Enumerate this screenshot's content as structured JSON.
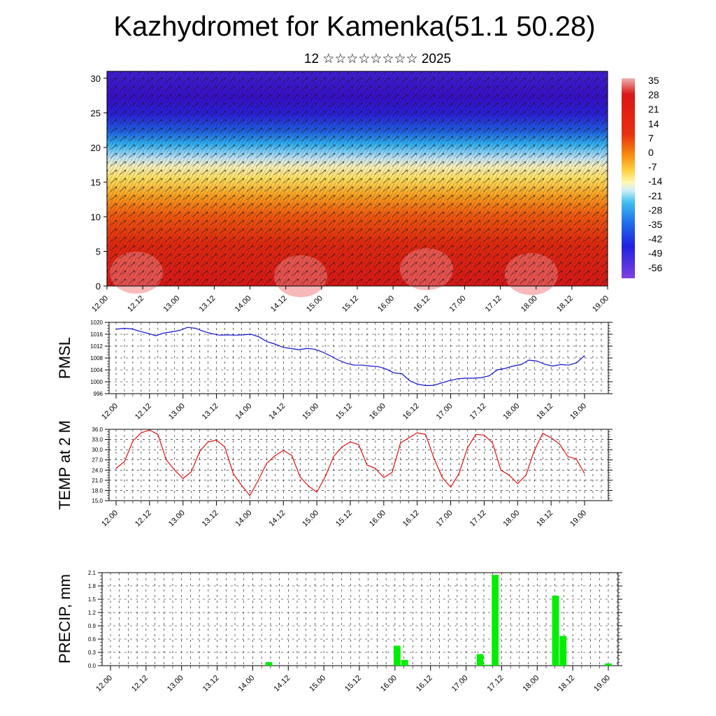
{
  "title": "Kazhydromet for Kamenka(51.1 50.28)",
  "subtitle": "12 ☆☆☆☆☆☆☆☆ 2025",
  "time_labels": [
    "12.00",
    "12.12",
    "13.00",
    "13.12",
    "14.00",
    "14.12",
    "15.00",
    "15.12",
    "16.00",
    "16.12",
    "17.00",
    "17.12",
    "18.00",
    "18.12",
    "19.00"
  ],
  "colorbar_labels": [
    "35",
    "28",
    "21",
    "14",
    "7",
    "0",
    "-7",
    "-14",
    "-21",
    "-28",
    "-35",
    "-42",
    "-49",
    "-56"
  ],
  "colors": {
    "pmsl_line": "#1010d0",
    "temp_line": "#e01010",
    "precip_bar": "#00ee00",
    "section_low": "#d02020",
    "section_high": "#3010c0"
  },
  "chart_data": [
    {
      "type": "heatmap",
      "title": "",
      "x": [
        "12.00",
        "12.12",
        "13.00",
        "13.12",
        "14.00",
        "14.12",
        "15.00",
        "15.12",
        "16.00",
        "16.12",
        "17.00",
        "17.12",
        "18.00",
        "18.12",
        "19.00"
      ],
      "y_ticks": [
        0,
        5,
        10,
        15,
        20,
        25,
        30
      ],
      "ylim": [
        0,
        31
      ],
      "colorbar_range": [
        -56,
        35
      ],
      "levels": [
        {
          "y": 0,
          "value": 30
        },
        {
          "y": 5,
          "value": 21
        },
        {
          "y": 10,
          "value": 12
        },
        {
          "y": 13,
          "value": 0
        },
        {
          "y": 16,
          "value": -10
        },
        {
          "y": 19,
          "value": -22
        },
        {
          "y": 22,
          "value": -38
        },
        {
          "y": 25,
          "value": -52
        },
        {
          "y": 31,
          "value": -50
        }
      ]
    },
    {
      "type": "line",
      "ylabel": "PMSL",
      "ylim": [
        996,
        1020
      ],
      "y_ticks": [
        996,
        1000,
        1004,
        1008,
        1012,
        1016,
        1020
      ],
      "x_ticks": [
        "12.00",
        "12.12",
        "13.00",
        "13.12",
        "14.00",
        "14.12",
        "15.00",
        "15.12",
        "16.00",
        "16.12",
        "17.00",
        "17.12",
        "18.00",
        "18.12",
        "19.00"
      ],
      "values": [
        1017.7,
        1018.0,
        1017.8,
        1017.0,
        1016.3,
        1015.5,
        1016.4,
        1016.8,
        1017.3,
        1018.3,
        1018.0,
        1017.0,
        1016.2,
        1015.7,
        1015.8,
        1015.7,
        1015.8,
        1016.0,
        1015.1,
        1013.5,
        1012.7,
        1011.6,
        1011.2,
        1010.8,
        1011.2,
        1011.0,
        1010.0,
        1008.7,
        1007.3,
        1006.2,
        1005.6,
        1005.6,
        1005.3,
        1005.1,
        1004.3,
        1003.0,
        1002.7,
        1000.3,
        999.2,
        998.7,
        998.8,
        999.6,
        1000.4,
        1001.0,
        1001.2,
        1001.2,
        1001.4,
        1002.0,
        1004.0,
        1004.5,
        1005.3,
        1005.8,
        1007.3,
        1007.0,
        1005.9,
        1005.3,
        1005.8,
        1005.6,
        1006.4,
        1008.8
      ]
    },
    {
      "type": "line",
      "ylabel": "TEMP at 2 M",
      "ylim": [
        15,
        36
      ],
      "y_ticks": [
        15.0,
        18.0,
        21.0,
        24.0,
        27.0,
        30.0,
        33.0,
        36.0
      ],
      "x_ticks": [
        "12.00",
        "12.12",
        "13.00",
        "13.12",
        "14.00",
        "14.12",
        "15.00",
        "15.12",
        "16.00",
        "16.12",
        "17.00",
        "17.12",
        "18.00",
        "18.12",
        "19.00"
      ],
      "values": [
        24.5,
        26.5,
        32.5,
        35.0,
        35.8,
        34.5,
        27.0,
        24.0,
        21.5,
        23.5,
        29.5,
        32.3,
        32.8,
        30.8,
        23.0,
        19.5,
        16.5,
        21.0,
        26.0,
        28.2,
        29.8,
        28.3,
        22.0,
        19.3,
        17.5,
        22.0,
        28.0,
        30.8,
        32.3,
        31.5,
        25.5,
        24.5,
        21.8,
        23.3,
        32.0,
        33.5,
        35.0,
        34.5,
        27.5,
        21.8,
        19.0,
        23.0,
        30.5,
        34.5,
        34.3,
        32.0,
        24.0,
        22.5,
        20.0,
        22.5,
        29.8,
        34.8,
        33.5,
        31.7,
        28.0,
        27.3,
        23.0
      ]
    },
    {
      "type": "bar",
      "ylabel": "PRECIP, mm",
      "ylim": [
        0,
        2.1
      ],
      "y_ticks": [
        0.0,
        0.3,
        0.6,
        0.9,
        1.2,
        1.5,
        1.8,
        2.1
      ],
      "x_ticks": [
        "12.00",
        "12.12",
        "13.00",
        "13.12",
        "14.00",
        "14.12",
        "15.00",
        "15.12",
        "16.00",
        "16.12",
        "17.00",
        "17.12",
        "18.00",
        "18.12",
        "19.00"
      ],
      "values": [
        0,
        0,
        0,
        0,
        0,
        0,
        0,
        0,
        0,
        0,
        0,
        0,
        0,
        0,
        0,
        0,
        0,
        0,
        0,
        0,
        0,
        0.08,
        0,
        0,
        0,
        0,
        0,
        0,
        0,
        0,
        0,
        0,
        0,
        0,
        0,
        0,
        0,
        0,
        0.45,
        0.13,
        0,
        0,
        0,
        0,
        0,
        0,
        0,
        0,
        0,
        0.26,
        0.02,
        2.05,
        0,
        0,
        0,
        0,
        0,
        0,
        0,
        1.58,
        0.67,
        0,
        0,
        0,
        0,
        0,
        0.05
      ]
    }
  ]
}
